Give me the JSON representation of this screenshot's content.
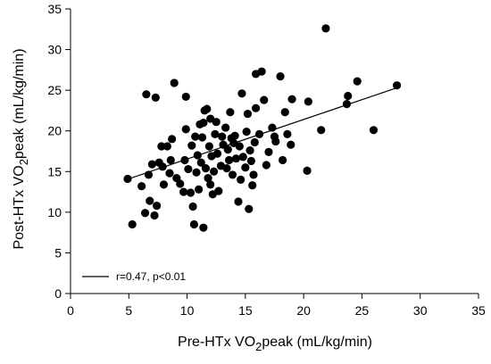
{
  "chart_data": {
    "type": "scatter",
    "xlabel_parts": [
      "Pre-HTx VO",
      "2",
      "peak (mL/kg/min)"
    ],
    "ylabel_parts": [
      "Post-HTx VO",
      "2",
      "peak (mL/kg/min)"
    ],
    "xlim": [
      0,
      35
    ],
    "ylim": [
      0,
      35
    ],
    "xticks": [
      0,
      5,
      10,
      15,
      20,
      25,
      30,
      35
    ],
    "yticks": [
      0,
      5,
      10,
      15,
      20,
      25,
      30,
      35
    ],
    "grid": false,
    "legend": {
      "position": "bottom-left",
      "label": "r=0.47, p<0.01"
    },
    "regression_line": {
      "x": [
        5.0,
        28.0
      ],
      "y": [
        14.1,
        25.3
      ]
    },
    "points": [
      {
        "x": 5.3,
        "y": 8.5
      },
      {
        "x": 4.9,
        "y": 14.1
      },
      {
        "x": 6.1,
        "y": 13.2
      },
      {
        "x": 6.4,
        "y": 9.9
      },
      {
        "x": 6.5,
        "y": 24.5
      },
      {
        "x": 6.7,
        "y": 14.6
      },
      {
        "x": 6.8,
        "y": 11.4
      },
      {
        "x": 7.0,
        "y": 15.9
      },
      {
        "x": 7.2,
        "y": 9.6
      },
      {
        "x": 7.3,
        "y": 24.1
      },
      {
        "x": 7.4,
        "y": 10.8
      },
      {
        "x": 7.6,
        "y": 16.1
      },
      {
        "x": 7.8,
        "y": 18.1
      },
      {
        "x": 7.9,
        "y": 15.6
      },
      {
        "x": 8.0,
        "y": 13.4
      },
      {
        "x": 8.3,
        "y": 18.1
      },
      {
        "x": 8.5,
        "y": 14.8
      },
      {
        "x": 8.6,
        "y": 16.4
      },
      {
        "x": 8.7,
        "y": 19.0
      },
      {
        "x": 8.9,
        "y": 25.9
      },
      {
        "x": 9.1,
        "y": 14.2
      },
      {
        "x": 9.4,
        "y": 13.5
      },
      {
        "x": 9.7,
        "y": 12.5
      },
      {
        "x": 9.8,
        "y": 16.4
      },
      {
        "x": 9.9,
        "y": 20.2
      },
      {
        "x": 9.9,
        "y": 24.2
      },
      {
        "x": 10.1,
        "y": 15.3
      },
      {
        "x": 10.3,
        "y": 12.4
      },
      {
        "x": 10.5,
        "y": 10.7
      },
      {
        "x": 10.6,
        "y": 8.5
      },
      {
        "x": 10.4,
        "y": 18.2
      },
      {
        "x": 10.7,
        "y": 19.3
      },
      {
        "x": 10.8,
        "y": 14.9
      },
      {
        "x": 10.9,
        "y": 17.0
      },
      {
        "x": 11.0,
        "y": 12.8
      },
      {
        "x": 11.1,
        "y": 20.8
      },
      {
        "x": 11.2,
        "y": 16.1
      },
      {
        "x": 11.3,
        "y": 19.2
      },
      {
        "x": 11.4,
        "y": 21.0
      },
      {
        "x": 11.5,
        "y": 22.5
      },
      {
        "x": 11.4,
        "y": 8.1
      },
      {
        "x": 11.6,
        "y": 15.4
      },
      {
        "x": 11.7,
        "y": 22.7
      },
      {
        "x": 11.8,
        "y": 14.2
      },
      {
        "x": 11.9,
        "y": 18.1
      },
      {
        "x": 12.0,
        "y": 13.4
      },
      {
        "x": 12.0,
        "y": 21.5
      },
      {
        "x": 12.1,
        "y": 16.9
      },
      {
        "x": 12.2,
        "y": 12.2
      },
      {
        "x": 12.3,
        "y": 15.0
      },
      {
        "x": 12.4,
        "y": 19.6
      },
      {
        "x": 12.5,
        "y": 21.1
      },
      {
        "x": 12.6,
        "y": 17.2
      },
      {
        "x": 12.7,
        "y": 12.6
      },
      {
        "x": 12.9,
        "y": 15.7
      },
      {
        "x": 13.0,
        "y": 19.3
      },
      {
        "x": 13.1,
        "y": 18.3
      },
      {
        "x": 13.3,
        "y": 20.4
      },
      {
        "x": 13.4,
        "y": 15.4
      },
      {
        "x": 13.5,
        "y": 17.7
      },
      {
        "x": 13.6,
        "y": 16.4
      },
      {
        "x": 13.7,
        "y": 22.3
      },
      {
        "x": 13.8,
        "y": 19.1
      },
      {
        "x": 13.9,
        "y": 14.6
      },
      {
        "x": 14.0,
        "y": 18.5
      },
      {
        "x": 14.1,
        "y": 19.4
      },
      {
        "x": 14.2,
        "y": 16.6
      },
      {
        "x": 14.4,
        "y": 11.3
      },
      {
        "x": 14.5,
        "y": 18.1
      },
      {
        "x": 14.6,
        "y": 14.0
      },
      {
        "x": 14.7,
        "y": 24.6
      },
      {
        "x": 14.8,
        "y": 16.8
      },
      {
        "x": 15.0,
        "y": 15.5
      },
      {
        "x": 15.1,
        "y": 19.9
      },
      {
        "x": 15.2,
        "y": 22.1
      },
      {
        "x": 15.3,
        "y": 10.4
      },
      {
        "x": 15.4,
        "y": 17.6
      },
      {
        "x": 15.5,
        "y": 16.3
      },
      {
        "x": 15.6,
        "y": 13.3
      },
      {
        "x": 15.7,
        "y": 14.6
      },
      {
        "x": 15.8,
        "y": 18.6
      },
      {
        "x": 15.9,
        "y": 22.8
      },
      {
        "x": 15.9,
        "y": 27.0
      },
      {
        "x": 16.2,
        "y": 19.6
      },
      {
        "x": 16.4,
        "y": 27.3
      },
      {
        "x": 16.6,
        "y": 23.8
      },
      {
        "x": 16.8,
        "y": 15.8
      },
      {
        "x": 17.0,
        "y": 17.4
      },
      {
        "x": 17.3,
        "y": 20.4
      },
      {
        "x": 17.5,
        "y": 19.3
      },
      {
        "x": 17.6,
        "y": 18.7
      },
      {
        "x": 18.0,
        "y": 26.7
      },
      {
        "x": 18.2,
        "y": 16.4
      },
      {
        "x": 18.4,
        "y": 22.3
      },
      {
        "x": 18.6,
        "y": 19.6
      },
      {
        "x": 18.9,
        "y": 18.3
      },
      {
        "x": 19.0,
        "y": 23.9
      },
      {
        "x": 20.3,
        "y": 15.1
      },
      {
        "x": 20.4,
        "y": 23.6
      },
      {
        "x": 21.5,
        "y": 20.1
      },
      {
        "x": 21.9,
        "y": 32.6
      },
      {
        "x": 23.7,
        "y": 23.3
      },
      {
        "x": 23.8,
        "y": 24.3
      },
      {
        "x": 24.6,
        "y": 26.1
      },
      {
        "x": 26.0,
        "y": 20.1
      },
      {
        "x": 28.0,
        "y": 25.6
      }
    ]
  }
}
